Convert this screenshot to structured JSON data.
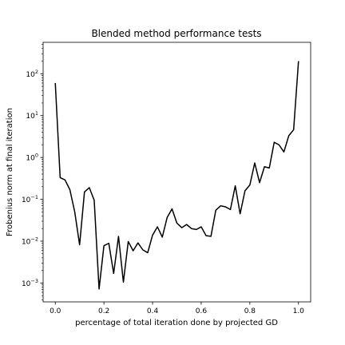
{
  "chart_data": {
    "type": "line",
    "title": "Blended method performance tests",
    "xlabel": "percentage of total iteration done by projected GD",
    "ylabel": "Frobenius norm at final iteration",
    "yscale": "log",
    "xlim": [
      -0.05,
      1.05
    ],
    "ylim_exp": [
      -3.45,
      2.75
    ],
    "grid": false,
    "line_color": "#000000",
    "x_ticks": [
      {
        "value": 0.0,
        "label": "0.0"
      },
      {
        "value": 0.2,
        "label": "0.2"
      },
      {
        "value": 0.4,
        "label": "0.4"
      },
      {
        "value": 0.6,
        "label": "0.6"
      },
      {
        "value": 0.8,
        "label": "0.8"
      },
      {
        "value": 1.0,
        "label": "1.0"
      }
    ],
    "y_ticks": [
      {
        "exponent": -3,
        "base": "10",
        "exp_label": "−3"
      },
      {
        "exponent": -2,
        "base": "10",
        "exp_label": "−2"
      },
      {
        "exponent": -1,
        "base": "10",
        "exp_label": "−1"
      },
      {
        "exponent": 0,
        "base": "10",
        "exp_label": "0"
      },
      {
        "exponent": 1,
        "base": "10",
        "exp_label": "1"
      },
      {
        "exponent": 2,
        "base": "10",
        "exp_label": "2"
      }
    ],
    "series": [
      {
        "x": [
          0.0,
          0.02,
          0.04,
          0.06,
          0.08,
          0.1,
          0.12,
          0.14,
          0.16,
          0.18,
          0.2,
          0.22,
          0.24,
          0.26,
          0.28,
          0.3,
          0.32,
          0.34,
          0.36,
          0.38,
          0.4,
          0.42,
          0.44,
          0.46,
          0.48,
          0.5,
          0.52,
          0.54,
          0.56,
          0.58,
          0.6,
          0.62,
          0.64,
          0.66,
          0.68,
          0.7,
          0.72,
          0.74,
          0.76,
          0.78,
          0.8,
          0.82,
          0.84,
          0.86,
          0.88,
          0.9,
          0.92,
          0.94,
          0.96,
          0.98,
          1.0
        ],
        "y": [
          60,
          0.33,
          0.29,
          0.17,
          0.05,
          0.0082,
          0.15,
          0.19,
          0.095,
          0.00072,
          0.0078,
          0.0089,
          0.0017,
          0.013,
          0.00105,
          0.0098,
          0.0059,
          0.0091,
          0.0062,
          0.0053,
          0.014,
          0.022,
          0.0125,
          0.037,
          0.059,
          0.027,
          0.021,
          0.025,
          0.02,
          0.019,
          0.022,
          0.0135,
          0.0131,
          0.055,
          0.07,
          0.066,
          0.057,
          0.21,
          0.045,
          0.16,
          0.22,
          0.74,
          0.25,
          0.6,
          0.56,
          2.3,
          2.0,
          1.35,
          3.3,
          4.6,
          200
        ]
      }
    ]
  }
}
